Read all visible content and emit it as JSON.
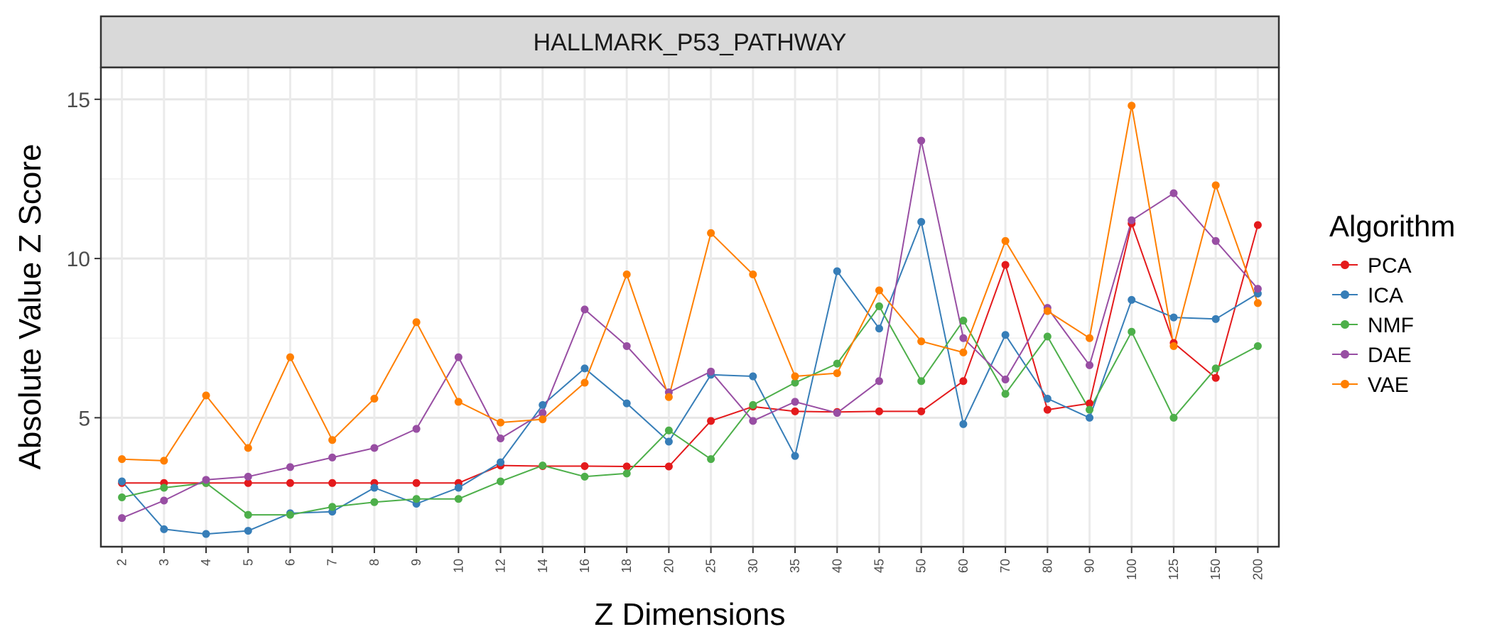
{
  "chart_data": {
    "type": "line",
    "panel_title": "HALLMARK_P53_PATHWAY",
    "xlabel": "Z Dimensions",
    "ylabel": "Absolute Value Z Score",
    "x_ticks": [
      "2",
      "3",
      "4",
      "5",
      "6",
      "7",
      "8",
      "9",
      "10",
      "12",
      "14",
      "16",
      "18",
      "20",
      "25",
      "30",
      "35",
      "40",
      "45",
      "50",
      "60",
      "70",
      "80",
      "90",
      "100",
      "125",
      "150",
      "200"
    ],
    "y_ticks": [
      5,
      10,
      15
    ],
    "ylim": [
      0.95,
      16.0
    ],
    "grid": true,
    "legend": {
      "title": "Algorithm",
      "position": "right"
    },
    "series": [
      {
        "name": "PCA",
        "color": "#E41A1C",
        "values": [
          2.95,
          2.95,
          2.95,
          2.95,
          2.95,
          2.95,
          2.95,
          2.95,
          2.95,
          3.5,
          3.48,
          3.48,
          3.47,
          3.47,
          4.9,
          5.35,
          5.2,
          5.18,
          5.2,
          5.2,
          6.15,
          9.8,
          5.25,
          5.45,
          11.1,
          7.35,
          6.25,
          11.05
        ]
      },
      {
        "name": "ICA",
        "color": "#377EB8",
        "values": [
          3.0,
          1.5,
          1.35,
          1.45,
          2.0,
          2.05,
          2.8,
          2.3,
          2.8,
          3.6,
          5.4,
          6.55,
          5.45,
          4.25,
          6.35,
          6.3,
          3.8,
          9.6,
          7.8,
          11.15,
          4.8,
          7.6,
          5.6,
          5.0,
          8.7,
          8.15,
          8.1,
          8.9
        ]
      },
      {
        "name": "NMF",
        "color": "#4DAF4A",
        "values": [
          2.5,
          2.8,
          2.95,
          1.95,
          1.95,
          2.2,
          2.35,
          2.45,
          2.45,
          3.0,
          3.5,
          3.15,
          3.25,
          4.6,
          3.7,
          5.4,
          6.1,
          6.7,
          8.5,
          6.15,
          8.05,
          5.75,
          7.55,
          5.25,
          7.7,
          5.0,
          6.55,
          7.25
        ]
      },
      {
        "name": "DAE",
        "color": "#984EA3",
        "values": [
          1.85,
          2.4,
          3.05,
          3.15,
          3.45,
          3.75,
          4.05,
          4.65,
          6.9,
          4.35,
          5.15,
          8.4,
          7.25,
          5.8,
          6.45,
          4.9,
          5.5,
          5.15,
          6.15,
          13.7,
          7.5,
          6.2,
          8.45,
          6.65,
          11.2,
          12.05,
          10.55,
          9.05
        ]
      },
      {
        "name": "VAE",
        "color": "#FF7F00",
        "values": [
          3.7,
          3.65,
          5.7,
          4.05,
          6.9,
          4.3,
          5.6,
          8.0,
          5.5,
          4.85,
          4.95,
          6.1,
          9.5,
          5.65,
          10.8,
          9.5,
          6.3,
          6.4,
          9.0,
          7.4,
          7.05,
          10.55,
          8.35,
          7.5,
          14.8,
          7.25,
          12.3,
          8.6
        ]
      }
    ]
  }
}
